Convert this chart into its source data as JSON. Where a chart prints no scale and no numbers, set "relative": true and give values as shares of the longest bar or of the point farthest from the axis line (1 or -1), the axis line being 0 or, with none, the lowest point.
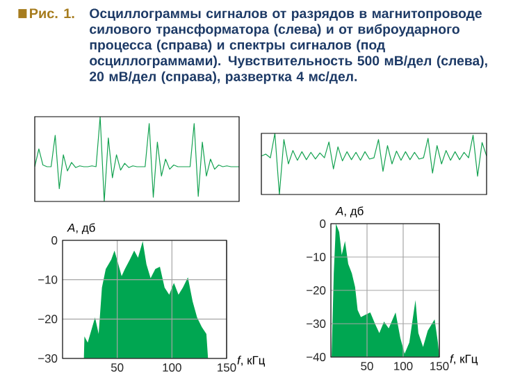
{
  "chart_data": [
    {
      "type": "line",
      "title": "Рис. 1.",
      "subtitle": "Осциллограммы сигналов от разрядов в магнитопроводе силового трансформатора (слева) и от виброударного процесса (справа) и спектры сигналов (под осциллограммами). Чувствительность 500 мВ/дел (слева), 20 мВ/дел (справа), развертка 4 мс/дел.",
      "relative": true,
      "color": "#12a14f",
      "categories": [
        null,
        null,
        null,
        null,
        null,
        null,
        null,
        null,
        null,
        null,
        null,
        null,
        null,
        null,
        null,
        null,
        null,
        null,
        null,
        null,
        null,
        null,
        null,
        null,
        null,
        null,
        null,
        null,
        null,
        null,
        null,
        null,
        null,
        null,
        null,
        null,
        null,
        null,
        null,
        null,
        null,
        null,
        null,
        null,
        null,
        null,
        null,
        null,
        null,
        null,
        null
      ],
      "values": [
        0.41,
        0.62,
        0.43,
        0.41,
        0.41,
        0.78,
        0.15,
        0.55,
        0.36,
        0.46,
        0.4,
        0.42,
        0.41,
        0.41,
        0.42,
        0.41,
        1.0,
        0.0,
        0.75,
        0.28,
        0.55,
        0.37,
        0.45,
        0.4,
        0.42,
        0.41,
        0.41,
        0.41,
        0.92,
        0.05,
        0.7,
        0.3,
        0.5,
        0.38,
        0.43,
        0.41,
        0.41,
        0.41,
        0.41,
        0.92,
        0.06,
        0.7,
        0.3,
        0.5,
        0.38,
        0.43,
        0.41,
        0.42,
        0.41,
        0.41,
        0.41
      ]
    },
    {
      "type": "line",
      "relative": true,
      "color": "#12a14f",
      "categories": [
        null,
        null,
        null,
        null,
        null,
        null,
        null,
        null,
        null,
        null,
        null,
        null,
        null,
        null,
        null,
        null,
        null,
        null,
        null,
        null,
        null,
        null,
        null,
        null,
        null,
        null,
        null,
        null,
        null,
        null,
        null,
        null,
        null,
        null,
        null,
        null,
        null,
        null,
        null,
        null,
        null,
        null,
        null,
        null,
        null,
        null,
        null,
        null,
        null,
        null,
        null
      ],
      "values": [
        0.63,
        0.66,
        0.6,
        1.0,
        0.0,
        0.9,
        0.5,
        0.72,
        0.56,
        0.7,
        0.57,
        0.69,
        0.58,
        0.68,
        0.6,
        0.86,
        0.42,
        0.78,
        0.55,
        0.7,
        0.57,
        0.69,
        0.56,
        0.7,
        0.58,
        0.6,
        0.9,
        0.38,
        0.8,
        0.5,
        0.71,
        0.56,
        0.7,
        0.57,
        0.69,
        0.58,
        0.6,
        0.92,
        0.35,
        0.8,
        0.5,
        0.72,
        0.56,
        0.7,
        0.57,
        0.69,
        0.6,
        0.97,
        0.3,
        0.85,
        0.63
      ]
    },
    {
      "type": "area",
      "xlabel": "*f*, кГц",
      "ylabel": "*A*, дб",
      "color": "#00a651",
      "x": [
        19.5,
        20,
        23,
        29.7,
        33,
        36,
        39.5,
        44.5,
        47.5,
        51,
        54,
        57,
        61.5,
        65.5,
        69,
        73.3,
        76.7,
        80.5,
        84.8,
        89,
        93.3,
        97.5,
        101.8,
        106,
        110,
        114.6,
        118.9,
        123,
        127.3,
        131.5,
        133
      ],
      "values": [
        -30,
        -24.4,
        -26,
        -19.6,
        -23.8,
        -12,
        -7.3,
        -4.9,
        -2.6,
        -6.1,
        -9.1,
        -7.3,
        -4.9,
        -2.6,
        -4.4,
        -0.2,
        -6.1,
        -9.6,
        -7.3,
        -6.7,
        -12,
        -13.8,
        -10.8,
        -13.8,
        -12,
        -9.4,
        -15.5,
        -19.6,
        -22,
        -23.8,
        -30
      ],
      "xlim": [
        0,
        150
      ],
      "xticks": [
        50,
        100,
        150
      ],
      "ylim": [
        -30,
        0
      ],
      "yticks": [
        0,
        {
          "value": -10,
          "label": "−10"
        },
        {
          "value": -20,
          "label": "−20"
        },
        {
          "value": -30,
          "label": "−30"
        }
      ],
      "grid": true
    },
    {
      "type": "area",
      "xlabel": "*f*, кГц",
      "ylabel": "*A*, дб",
      "color": "#00a651",
      "x": [
        1,
        4,
        7,
        11.5,
        15,
        19.5,
        24,
        29,
        33.5,
        37,
        41.5,
        48,
        54.5,
        61,
        67,
        73.5,
        80,
        89.5,
        96,
        102,
        108.5,
        117,
        121,
        127.5,
        134,
        143.5,
        148,
        150
      ],
      "values": [
        -40,
        -14.9,
        0,
        -2.5,
        -9.4,
        -5.2,
        -12.1,
        -14.9,
        -19,
        -25.9,
        -28,
        -27.3,
        -26.6,
        -30,
        -32.8,
        -29.4,
        -31.4,
        -26.6,
        -34.2,
        -39,
        -35.6,
        -22.9,
        -32.8,
        -37,
        -32.1,
        -28.7,
        -35.6,
        -40
      ],
      "xlim": [
        0,
        150
      ],
      "xticks": [
        50,
        100,
        150
      ],
      "ylim": [
        -40,
        0
      ],
      "yticks": [
        0,
        {
          "value": -10,
          "label": "−10"
        },
        {
          "value": -20,
          "label": "−20"
        },
        {
          "value": -30,
          "label": "−30"
        },
        {
          "value": -40,
          "label": "−40"
        }
      ],
      "grid": true
    }
  ]
}
